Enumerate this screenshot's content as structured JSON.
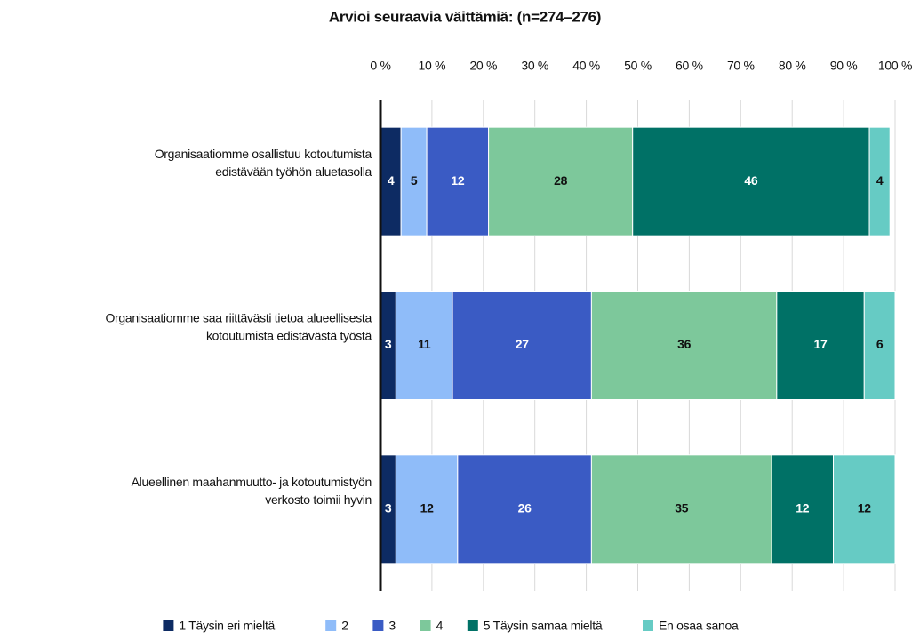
{
  "chart_data": {
    "type": "stacked_barh",
    "title": "Arvioi seuraavia väittämiä: (n=274–276)",
    "categories": [
      [
        "Organisaatiomme osallistuu kotoutumista",
        "edistävään työhön aluetasolla"
      ],
      [
        "Organisaatiomme saa riittävästi tietoa alueellisesta",
        "kotoutumista edistävästä työstä"
      ],
      [
        "Alueellinen maahanmuutto- ja kotoutumistyön",
        "verkosto toimii hyvin"
      ]
    ],
    "series": [
      {
        "name": "1 Täysin eri mieltä",
        "color": "#0d2b63",
        "values": [
          4,
          3,
          3
        ]
      },
      {
        "name": "2",
        "color": "#8fbcf9",
        "values": [
          5,
          11,
          12
        ]
      },
      {
        "name": "3",
        "color": "#3a5bc4",
        "values": [
          12,
          27,
          26
        ]
      },
      {
        "name": "4",
        "color": "#7dc89b",
        "values": [
          28,
          36,
          35
        ]
      },
      {
        "name": "5 Täysin samaa mieltä",
        "color": "#007166",
        "values": [
          46,
          17,
          12
        ]
      },
      {
        "name": "En osaa sanoa",
        "color": "#66cbc4",
        "values": [
          4,
          6,
          12
        ]
      }
    ],
    "xlim": [
      0,
      100
    ],
    "xticks": [
      {
        "value": 0,
        "label": "0 %"
      },
      {
        "value": 10,
        "label": "10 %"
      },
      {
        "value": 20,
        "label": "20 %"
      },
      {
        "value": 30,
        "label": "30 %"
      },
      {
        "value": 40,
        "label": "40 %"
      },
      {
        "value": 50,
        "label": "50 %"
      },
      {
        "value": 60,
        "label": "60 %"
      },
      {
        "value": 70,
        "label": "70 %"
      },
      {
        "value": 80,
        "label": "80 %"
      },
      {
        "value": 90,
        "label": "90 %"
      },
      {
        "value": 100,
        "label": "100 %"
      }
    ],
    "grid": true,
    "legend": "bottom"
  }
}
